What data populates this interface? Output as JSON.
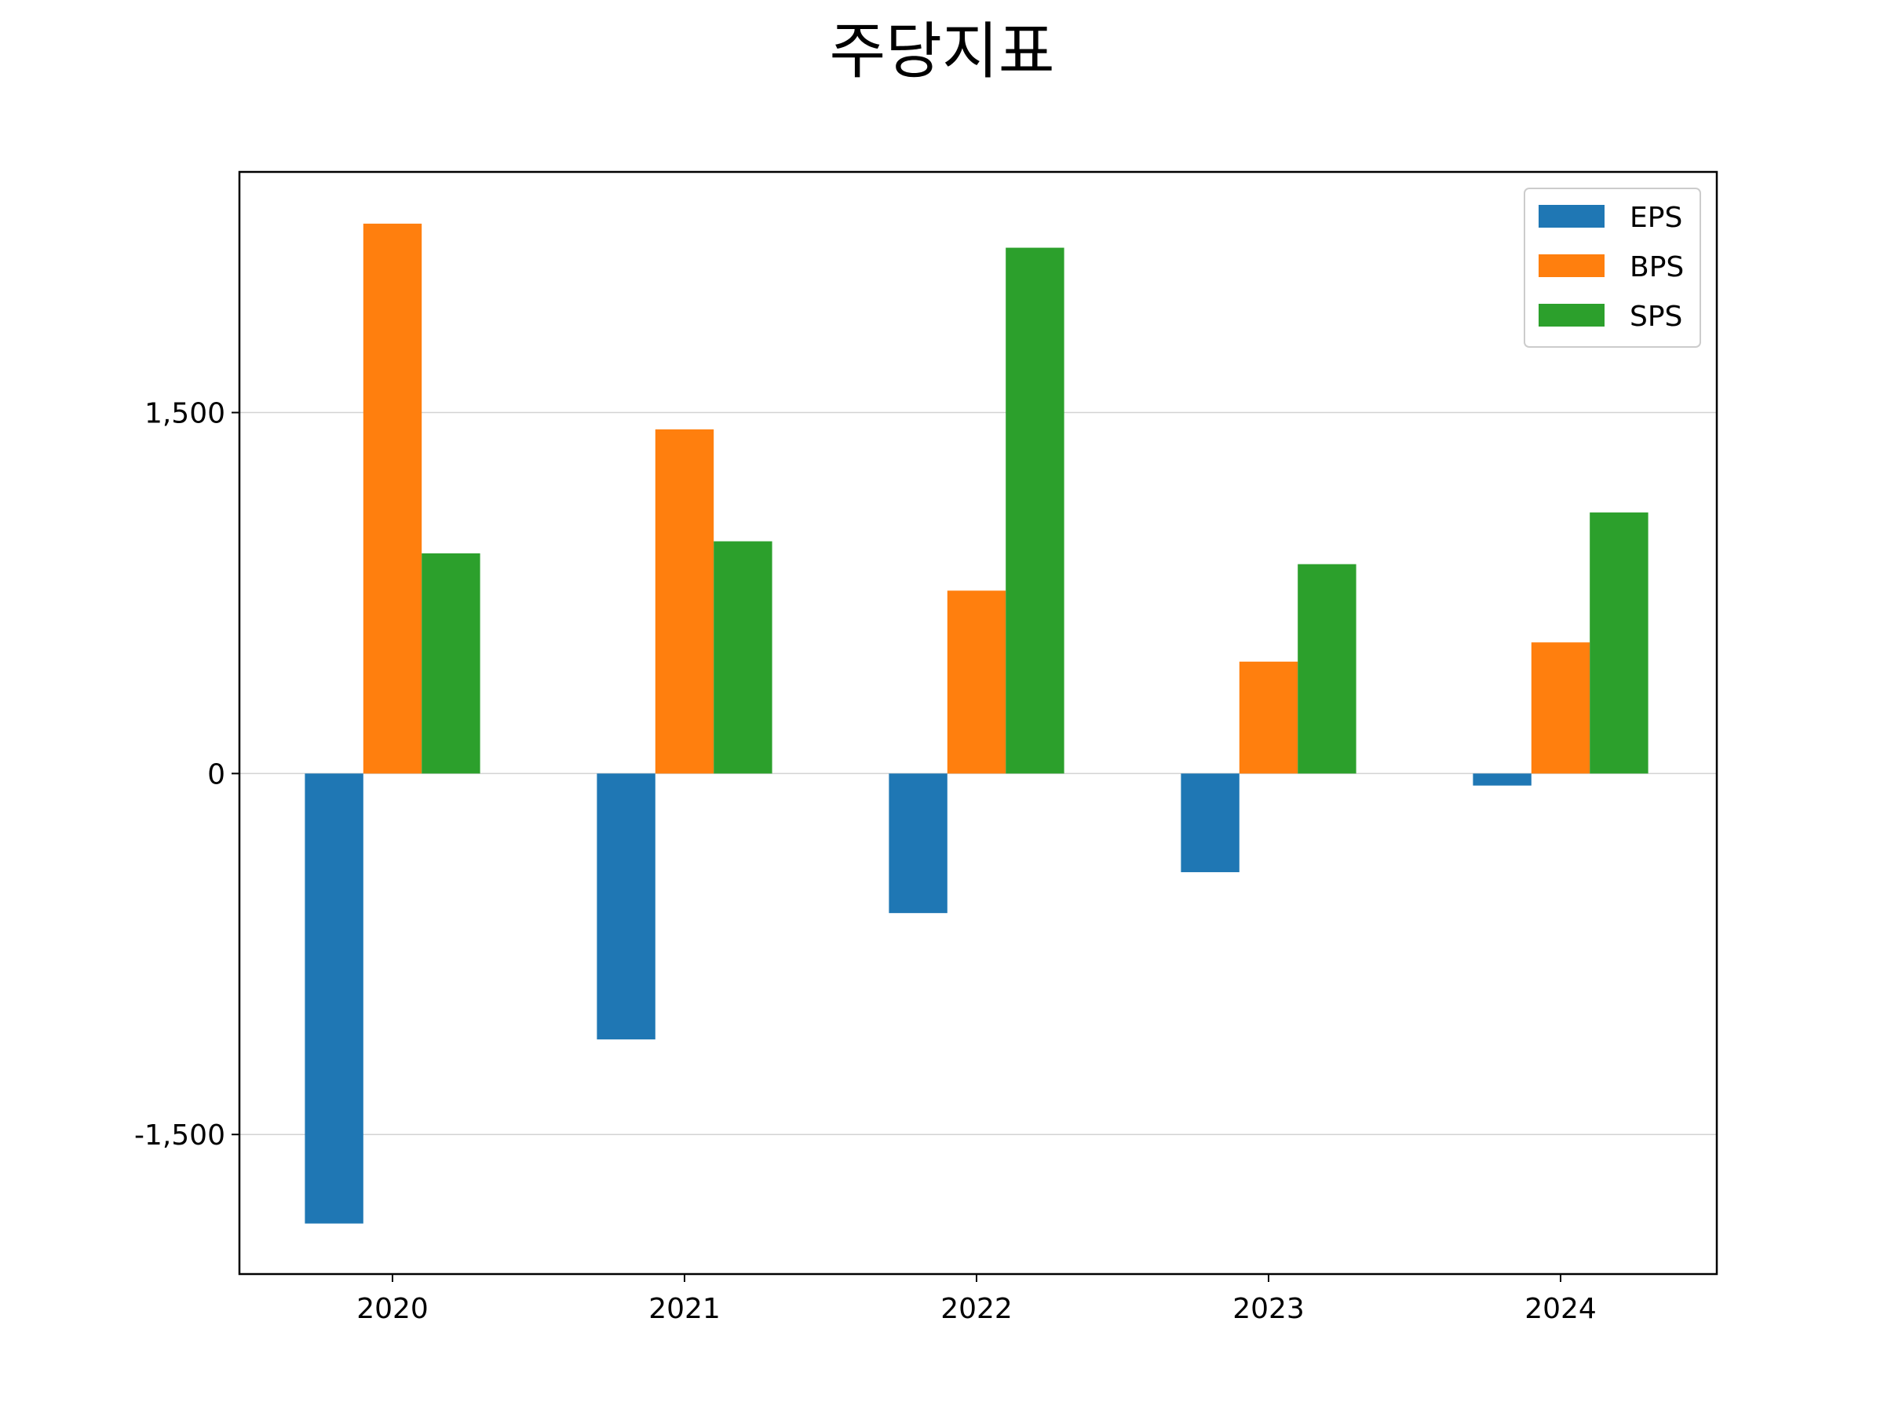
{
  "chart_data": {
    "type": "bar",
    "title": "주당지표",
    "xlabel": "",
    "ylabel": "",
    "categories": [
      "2020",
      "2021",
      "2022",
      "2023",
      "2024"
    ],
    "series": [
      {
        "name": "EPS",
        "color": "#1f77b4",
        "values": [
          -1870,
          -1105,
          -580,
          -410,
          -50
        ]
      },
      {
        "name": "BPS",
        "color": "#ff7f0e",
        "values": [
          2285,
          1430,
          760,
          465,
          545
        ]
      },
      {
        "name": "SPS",
        "color": "#2ca02c",
        "values": [
          915,
          965,
          2185,
          870,
          1085
        ]
      }
    ],
    "ylim": [
      -2080,
      2500
    ],
    "yticks": [
      -1500,
      0,
      1500
    ],
    "ytick_labels": [
      "-1,500",
      "0",
      "1,500"
    ],
    "grid": "horizontal",
    "legend": "top-right"
  }
}
